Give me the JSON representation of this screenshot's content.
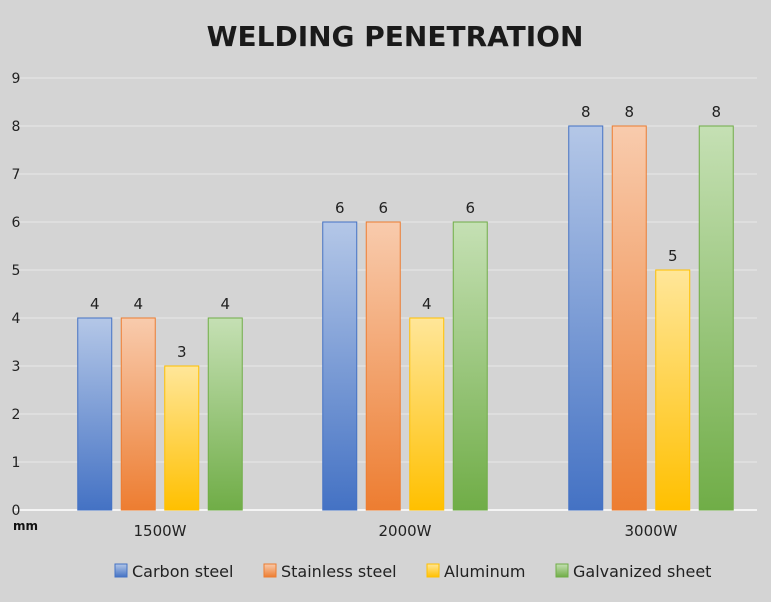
{
  "colors": {
    "plot_background": "#d4d4d4",
    "gridline": "#e8e8e8",
    "axis": "#ffffff",
    "series": [
      "#4472c4",
      "#ed7d31",
      "#ffc000",
      "#70ad47"
    ],
    "series_light": [
      "#b4c7e7",
      "#f8cbad",
      "#ffe699",
      "#c5e0b4"
    ]
  },
  "chart_data": {
    "type": "bar",
    "title": "WELDING PENETRATION",
    "ylabel": "mm",
    "xlabel": "",
    "ylim": [
      0,
      9
    ],
    "yticks": [
      0,
      1,
      2,
      3,
      4,
      5,
      6,
      7,
      8,
      9
    ],
    "grid": true,
    "legend_position": "bottom",
    "categories": [
      "1500W",
      "2000W",
      "3000W"
    ],
    "series": [
      {
        "name": "Carbon steel",
        "values": [
          4,
          6,
          8
        ]
      },
      {
        "name": "Stainless steel",
        "values": [
          4,
          6,
          8
        ]
      },
      {
        "name": "Aluminum",
        "values": [
          3,
          4,
          5
        ]
      },
      {
        "name": "Galvanized sheet",
        "values": [
          4,
          6,
          8
        ]
      }
    ]
  }
}
